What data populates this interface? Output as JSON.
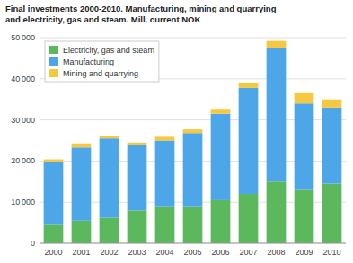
{
  "chart_data": {
    "type": "bar",
    "stacked": true,
    "title": "Final investments 2000-2010. Manufacturing, mining and quarrying\nand electricity, gas and steam. Mill. current NOK",
    "categories": [
      "2000",
      "2001",
      "2002",
      "2003",
      "2004",
      "2005",
      "2006",
      "2007",
      "2008",
      "2009",
      "2010"
    ],
    "series": [
      {
        "name": "Electricity, gas and steam",
        "color": "#5cb85c",
        "values": [
          4500,
          5500,
          6200,
          8000,
          8800,
          8800,
          10500,
          12000,
          15000,
          13000,
          14500
        ]
      },
      {
        "name": "Manufacturing",
        "color": "#4da6e8",
        "values": [
          15300,
          17800,
          19300,
          15800,
          16200,
          18000,
          21000,
          25800,
          32500,
          21000,
          18500
        ]
      },
      {
        "name": "Mining and quarrying",
        "color": "#f5c842",
        "values": [
          600,
          1000,
          600,
          700,
          900,
          900,
          1200,
          1200,
          1700,
          2500,
          2000
        ]
      }
    ],
    "ylim": [
      0,
      50000
    ],
    "yticks": [
      0,
      {
        "value": 10000,
        "label": "10 000"
      },
      {
        "value": 20000,
        "label": "20 000"
      },
      {
        "value": 30000,
        "label": "30 000"
      },
      {
        "value": 40000,
        "label": "40 000"
      },
      {
        "value": 50000,
        "label": "50 000"
      }
    ],
    "grid": true,
    "legend": "upper-left"
  }
}
